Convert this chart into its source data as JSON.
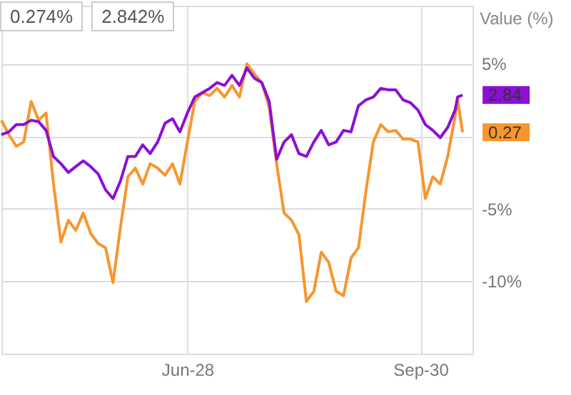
{
  "chart_data": {
    "type": "line",
    "ylabel": "Value (%)",
    "annotations": [
      "0.274%",
      "2.842%"
    ],
    "x": [
      "--04-14",
      "--04-17",
      "--04-20",
      "--04-23",
      "--04-26",
      "--04-29",
      "--05-02",
      "--05-05",
      "--05-08",
      "--05-11",
      "--05-14",
      "--05-17",
      "--05-20",
      "--05-23",
      "--05-26",
      "--05-29",
      "--06-01",
      "--06-04",
      "--06-07",
      "--06-10",
      "--06-13",
      "--06-16",
      "--06-19",
      "--06-22",
      "--06-25",
      "--06-28",
      "--07-01",
      "--07-04",
      "--07-07",
      "--07-10",
      "--07-13",
      "--07-16",
      "--07-19",
      "--07-22",
      "--07-25",
      "--07-28",
      "--07-31",
      "--08-03",
      "--08-06",
      "--08-09",
      "--08-12",
      "--08-15",
      "--08-18",
      "--08-21",
      "--08-24",
      "--08-27",
      "--08-30",
      "--09-02",
      "--09-05",
      "--09-08",
      "--09-11",
      "--09-14",
      "--09-17",
      "--09-20",
      "--09-23",
      "--09-26",
      "--09-29",
      "--10-02",
      "--10-05",
      "--10-08",
      "--10-11",
      "--10-14",
      "--10-15",
      "--10-17"
    ],
    "series": [
      {
        "color": "#f7962f",
        "values": [
          1.1,
          0.1,
          -0.7,
          -0.4,
          2.4,
          1.1,
          1.6,
          -3.3,
          -7.3,
          -5.8,
          -6.5,
          -5.3,
          -6.7,
          -7.4,
          -7.7,
          -10.1,
          -6.3,
          -2.8,
          -2.2,
          -3.3,
          -1.9,
          -2.2,
          -2.7,
          -1.9,
          -3.3,
          -0.4,
          2.4,
          3.0,
          2.8,
          3.3,
          2.7,
          3.5,
          2.7,
          5.0,
          4.3,
          3.7,
          2.0,
          -1.9,
          -5.3,
          -5.8,
          -6.8,
          -11.4,
          -10.7,
          -8.0,
          -8.7,
          -10.7,
          -11.0,
          -8.4,
          -7.7,
          -3.8,
          -0.4,
          0.8,
          0.3,
          0.4,
          -0.2,
          -0.2,
          -0.4,
          -4.3,
          -2.8,
          -3.3,
          -1.4,
          1.4,
          2.5,
          0.27
        ],
        "value_labels": [
          null,
          null,
          null,
          null,
          null,
          null,
          null,
          null,
          null,
          null,
          null,
          null,
          null,
          null,
          null,
          null,
          null,
          null,
          null,
          null,
          null,
          null,
          null,
          null,
          null,
          null,
          null,
          null,
          null,
          null,
          null,
          null,
          null,
          null,
          null,
          null,
          null,
          null,
          null,
          null,
          null,
          null,
          null,
          null,
          null,
          null,
          null,
          null,
          null,
          null,
          null,
          null,
          null,
          null,
          null,
          null,
          null,
          null,
          null,
          null,
          null,
          null,
          null,
          "0.27"
        ]
      },
      {
        "color": "#8c0fd6",
        "values": [
          0.1,
          0.3,
          0.8,
          0.8,
          1.1,
          1.0,
          0.4,
          -1.4,
          -1.9,
          -2.5,
          -2.1,
          -1.7,
          -2.1,
          -2.6,
          -3.7,
          -4.3,
          -3.1,
          -1.4,
          -1.4,
          -0.6,
          -1.2,
          -0.4,
          0.9,
          1.2,
          0.3,
          1.6,
          2.7,
          3.0,
          3.3,
          3.7,
          3.5,
          4.2,
          3.5,
          4.7,
          4.0,
          3.7,
          2.4,
          -1.6,
          -0.4,
          0.1,
          -1.2,
          -1.4,
          -0.4,
          0.4,
          -0.6,
          -0.4,
          0.4,
          0.3,
          2.1,
          2.5,
          2.7,
          3.3,
          3.2,
          3.2,
          2.5,
          2.3,
          1.8,
          0.8,
          0.4,
          -0.1,
          0.6,
          1.8,
          2.7,
          2.84
        ],
        "value_labels": [
          null,
          null,
          null,
          null,
          null,
          null,
          null,
          null,
          null,
          null,
          null,
          null,
          null,
          null,
          null,
          null,
          null,
          null,
          null,
          null,
          null,
          null,
          null,
          null,
          null,
          null,
          null,
          null,
          null,
          null,
          null,
          null,
          null,
          null,
          null,
          null,
          null,
          null,
          null,
          null,
          null,
          null,
          null,
          null,
          null,
          null,
          null,
          null,
          null,
          null,
          null,
          null,
          null,
          null,
          null,
          null,
          null,
          null,
          null,
          null,
          null,
          null,
          null,
          "2.84"
        ]
      }
    ],
    "xlim": [
      "--04-14",
      "--10-21"
    ],
    "xticks": [
      {
        "value": "--06-28",
        "label": "Jun-28"
      },
      {
        "value": "--09-30",
        "label": "Sep-30"
      }
    ],
    "ylim": [
      -15,
      9
    ],
    "yticks": [
      {
        "value": 5,
        "label": "5%"
      },
      {
        "value": 0,
        "label": null
      },
      {
        "value": -5,
        "label": "-5%"
      },
      {
        "value": -10,
        "label": "-10%"
      }
    ],
    "grid": true,
    "marker": "none",
    "line_style": "solid"
  }
}
